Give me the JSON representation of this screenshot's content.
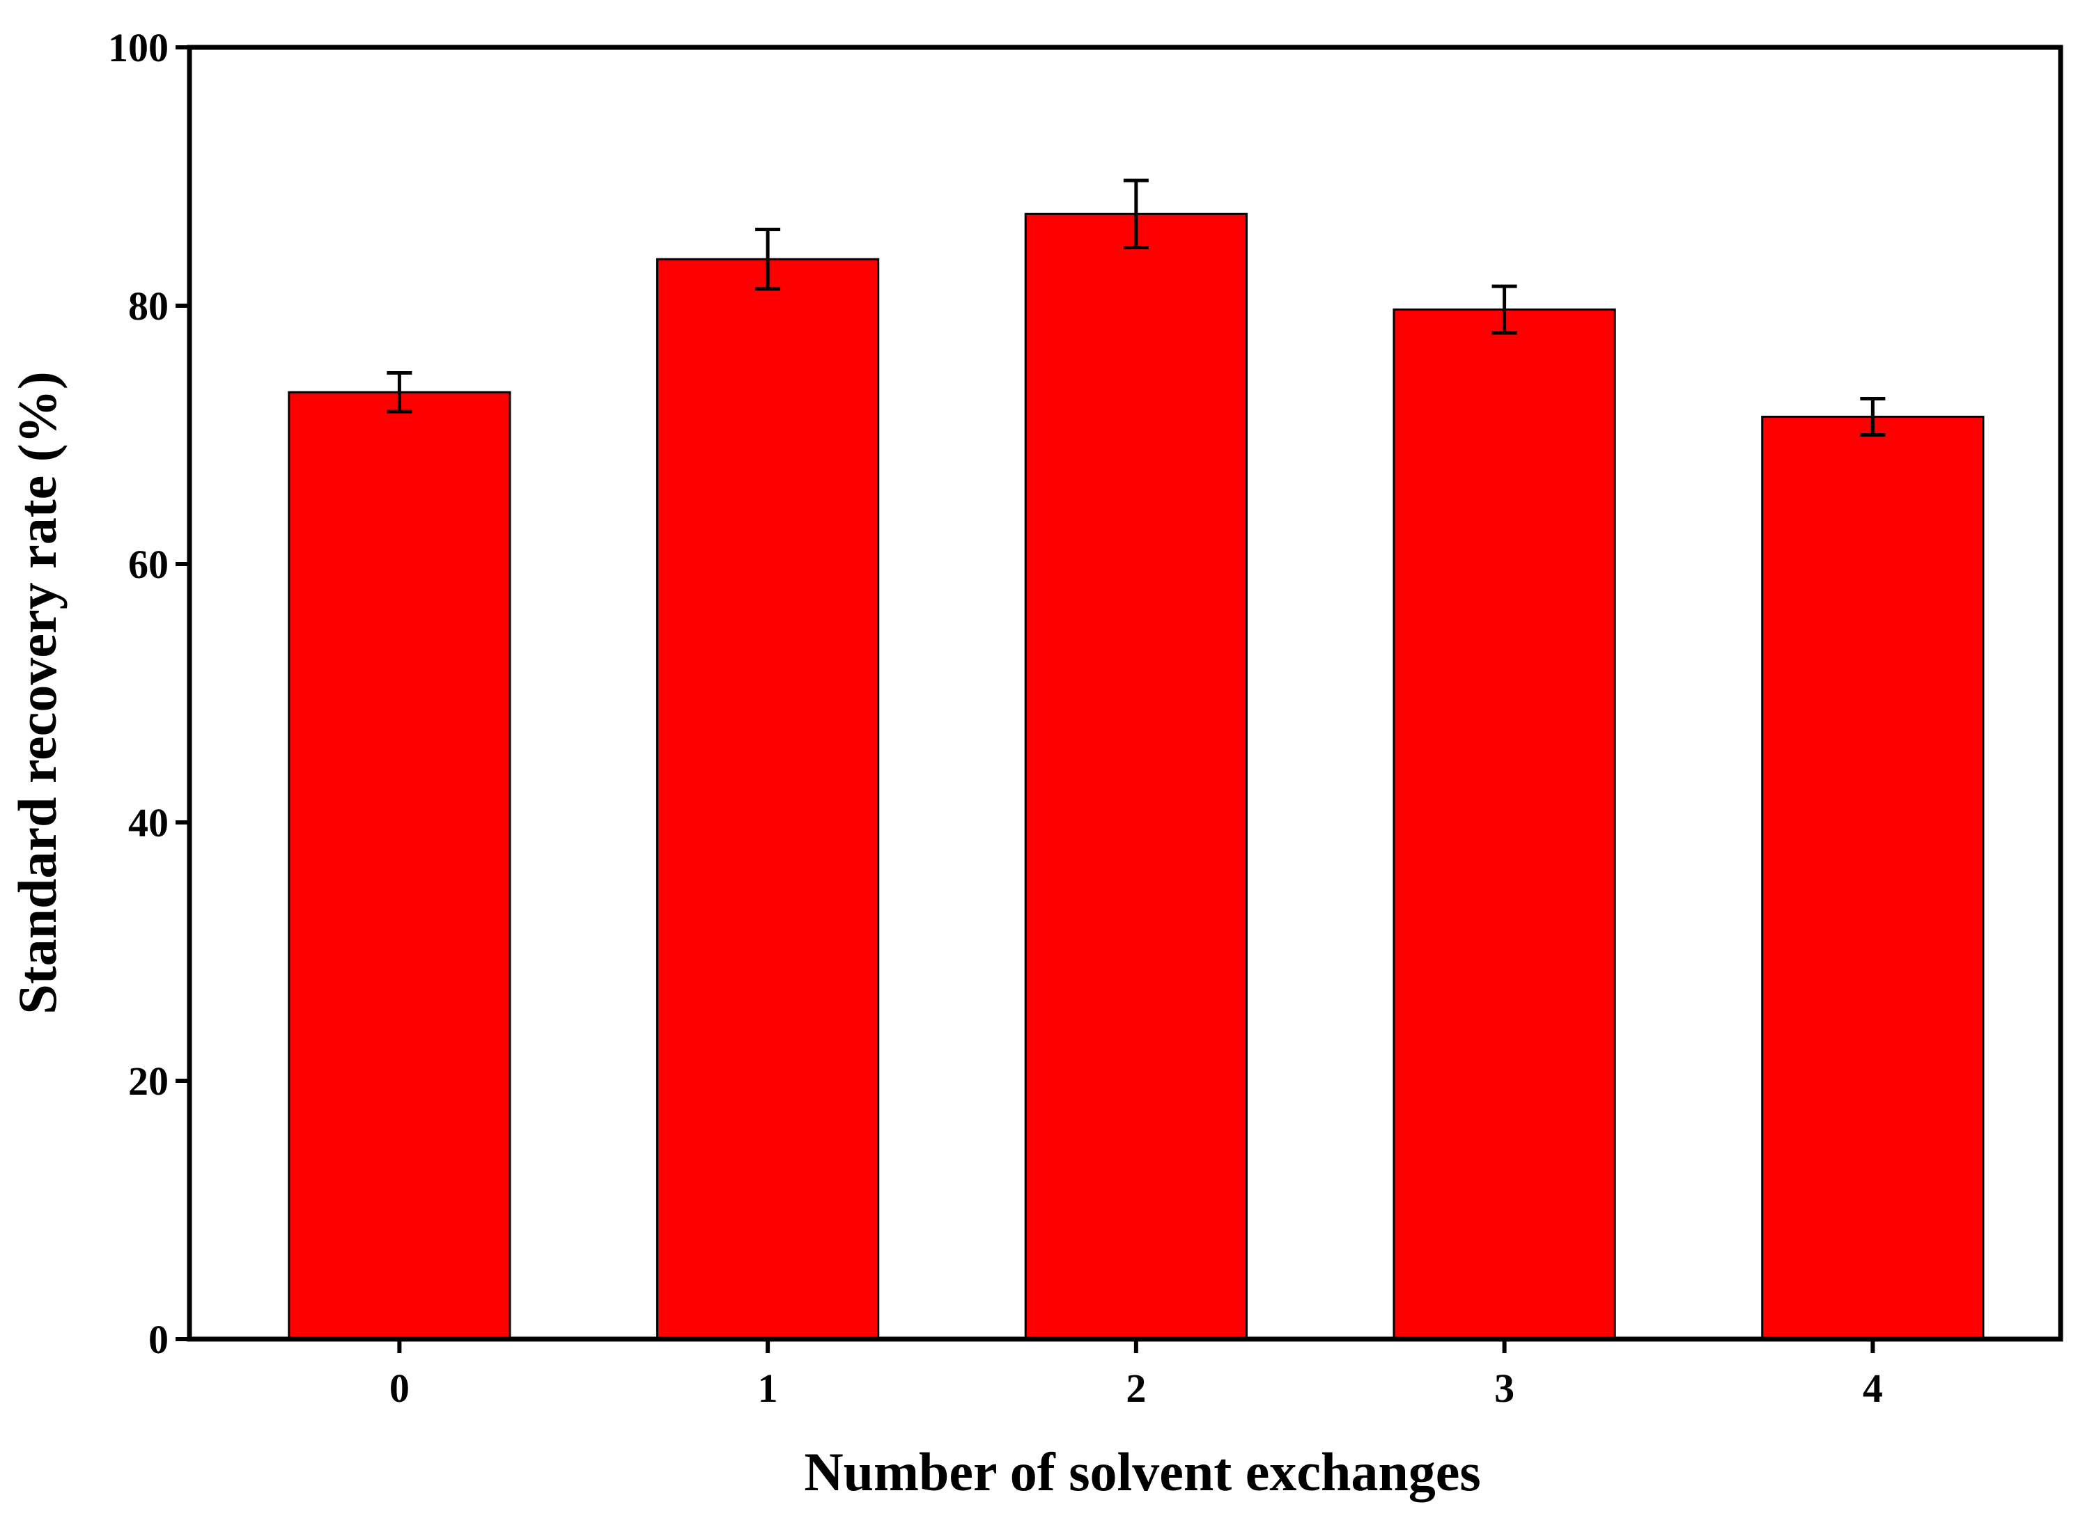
{
  "chart_data": {
    "type": "bar",
    "x_label": "Number of solvent exchanges",
    "y_label": "Standard recovery rate (%)",
    "categories": [
      "0",
      "1",
      "2",
      "3",
      "4"
    ],
    "values": [
      73.3,
      83.6,
      87.1,
      79.7,
      71.4
    ],
    "errors": [
      1.5,
      2.3,
      2.6,
      1.8,
      1.4
    ],
    "color": "#ff0000",
    "ylim": [
      0,
      100
    ],
    "yticks": [
      0,
      20,
      40,
      60,
      80,
      100
    ]
  }
}
